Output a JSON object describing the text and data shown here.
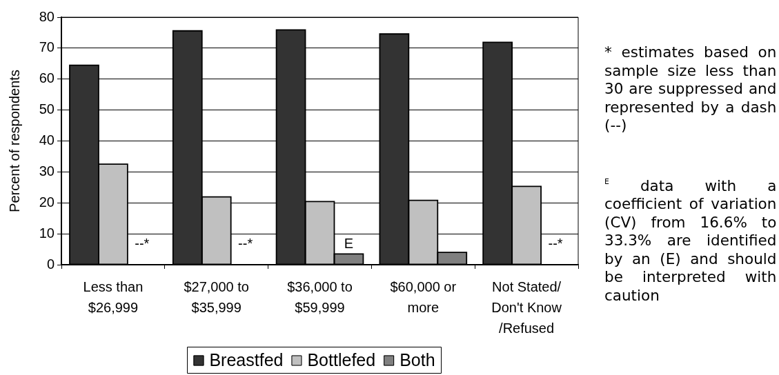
{
  "chart_data": {
    "type": "bar",
    "categories": [
      "Less than $26,999",
      "$27,000 to $35,999",
      "$36,000 to $59,999",
      "$60,000 or more",
      "Not Stated/ Don't Know /Refused"
    ],
    "ylabel": "Percent of respondents",
    "ylim": [
      0,
      80
    ],
    "yticks": [
      0,
      10,
      20,
      30,
      40,
      50,
      60,
      70,
      80
    ],
    "grid": "y",
    "legend": "bottom",
    "series": [
      {
        "name": "Breastfed",
        "color": "#333333",
        "values": [
          64.5,
          75.6,
          75.9,
          74.6,
          71.9
        ]
      },
      {
        "name": "Bottlefed",
        "color": "#c0c0c0",
        "values": [
          32.5,
          21.9,
          20.4,
          20.8,
          25.3
        ]
      },
      {
        "name": "Both",
        "color": "#808080",
        "values": [
          null,
          null,
          3.5,
          4.0,
          null
        ],
        "value_labels": [
          "--*",
          "--*",
          "E",
          null,
          "--*"
        ]
      }
    ],
    "annotations": [
      "* estimates based on sample size less than 30 are suppressed and represented by a dash (--)",
      "$^{E}$ data with a coefficient of variation (CV) from 16.6% to 33.3% are identified by an (E) and should be interpreted with caution"
    ]
  }
}
